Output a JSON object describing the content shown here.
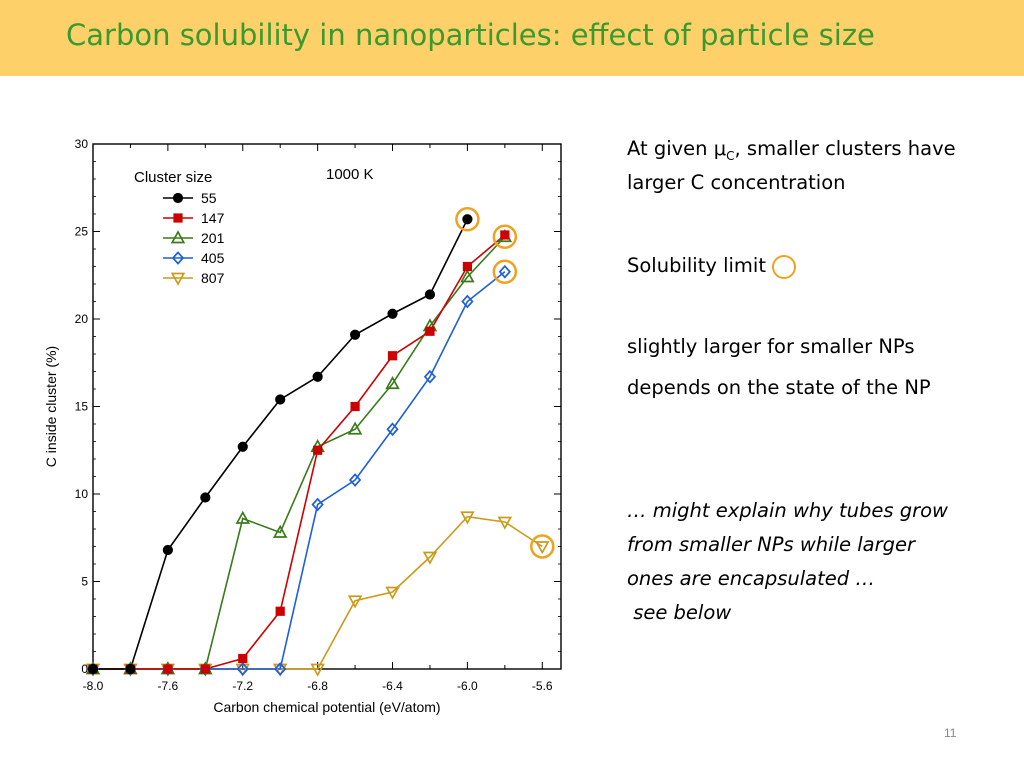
{
  "slide": {
    "title": "Carbon solubility in nanoparticles: effect of particle size",
    "page_number": "11",
    "notes": {
      "line1a_prefix": "At given μ",
      "line1a_sub": "C",
      "line1a_suffix": ", smaller clusters have",
      "line1b": "larger C concentration",
      "solubility": "Solubility limit",
      "slightly": "slightly larger for smaller NPs",
      "depends": "depends on the state of the NP",
      "might1": "… might explain why tubes grow",
      "might2": "from smaller NPs while larger",
      "might3": "ones are encapsulated …",
      "might4": " see below"
    },
    "colors": {
      "title": "#3a9a2e",
      "header_bg": "#fdd06a",
      "highlight": "#f0a21f"
    }
  },
  "chart_data": {
    "type": "line",
    "xlabel": "Carbon chemical potential (eV/atom)",
    "ylabel": "C inside cluster (%)",
    "xlim": [
      -8.0,
      -5.5
    ],
    "ylim": [
      0,
      30
    ],
    "xticks": [
      -8.0,
      -7.6,
      -7.2,
      -6.8,
      -6.4,
      -6.0,
      -5.6
    ],
    "xtick_labels": [
      "-8.0",
      "-7.6",
      "-7.2",
      "-6.8",
      "-6.4",
      "-6.0",
      "-5.6"
    ],
    "yticks": [
      0,
      5,
      10,
      15,
      20,
      25,
      30
    ],
    "ytick_labels": [
      "0",
      "5",
      "10",
      "15",
      "20",
      "25",
      "30"
    ],
    "annotation": "1000 K",
    "legend_title": "Cluster size",
    "legend_position": "top-left",
    "series": [
      {
        "name": "55",
        "color": "#000000",
        "marker": "circle-filled",
        "x": [
          -8.0,
          -7.8,
          -7.6,
          -7.4,
          -7.2,
          -7.0,
          -6.8,
          -6.6,
          -6.4,
          -6.2,
          -6.0
        ],
        "y": [
          0,
          0,
          6.8,
          9.8,
          12.7,
          15.4,
          16.7,
          19.1,
          20.3,
          21.4,
          25.7
        ]
      },
      {
        "name": "147",
        "color": "#cc0000",
        "marker": "square-filled",
        "x": [
          -8.0,
          -7.8,
          -7.6,
          -7.4,
          -7.2,
          -7.0,
          -6.8,
          -6.6,
          -6.4,
          -6.2,
          -6.0,
          -5.8
        ],
        "y": [
          0,
          0,
          0,
          0,
          0.6,
          3.3,
          12.5,
          15.0,
          17.9,
          19.3,
          23.0,
          24.8
        ]
      },
      {
        "name": "201",
        "color": "#3a7a1a",
        "marker": "triangle-open",
        "x": [
          -8.0,
          -7.8,
          -7.6,
          -7.4,
          -7.2,
          -7.0,
          -6.8,
          -6.6,
          -6.4,
          -6.2,
          -6.0,
          -5.8
        ],
        "y": [
          0,
          0,
          0,
          0,
          8.6,
          7.8,
          12.7,
          13.7,
          16.3,
          19.6,
          22.4,
          24.7
        ]
      },
      {
        "name": "405",
        "color": "#1e5fd9",
        "marker": "diamond-open",
        "x": [
          -8.0,
          -7.8,
          -7.6,
          -7.4,
          -7.2,
          -7.0,
          -6.8,
          -6.6,
          -6.4,
          -6.2,
          -6.0,
          -5.8
        ],
        "y": [
          0,
          0,
          0,
          0,
          0,
          0,
          9.4,
          10.8,
          13.7,
          16.7,
          21.0,
          22.7
        ]
      },
      {
        "name": "807",
        "color": "#cc9a1a",
        "marker": "triangle-down-open",
        "x": [
          -8.0,
          -7.8,
          -7.6,
          -7.4,
          -7.2,
          -7.0,
          -6.8,
          -6.6,
          -6.4,
          -6.2,
          -6.0,
          -5.8,
          -5.6
        ],
        "y": [
          0,
          0,
          0,
          0,
          0,
          0,
          0,
          3.9,
          4.4,
          6.4,
          8.7,
          8.4,
          7.0
        ]
      }
    ],
    "solubility_limit_markers": [
      {
        "x": -6.0,
        "y": 25.7
      },
      {
        "x": -5.8,
        "y": 24.7
      },
      {
        "x": -5.8,
        "y": 22.7
      },
      {
        "x": -5.6,
        "y": 7.0
      }
    ]
  }
}
